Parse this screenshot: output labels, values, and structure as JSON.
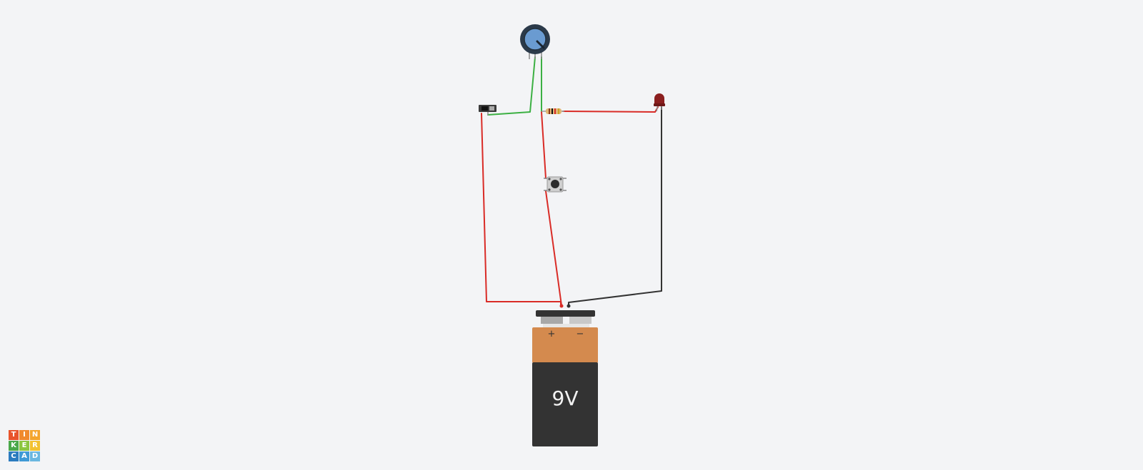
{
  "battery": {
    "voltage_label": "9V",
    "plus_label": "+",
    "minus_label": "−"
  },
  "logo": {
    "letters": [
      "T",
      "I",
      "N",
      "K",
      "E",
      "R",
      "C",
      "A",
      "D"
    ],
    "colors": [
      "#e8542c",
      "#f08a2d",
      "#f4a52d",
      "#4aa84a",
      "#8cc63f",
      "#f2c230",
      "#2b7bbf",
      "#3f9ad6",
      "#6ab7e0"
    ]
  },
  "colors": {
    "background": "#f3f4f6",
    "wire_red": "#d92b26",
    "wire_green": "#3cb043",
    "wire_black": "#333333",
    "battery_top": "#d48a4e",
    "battery_body": "#333333",
    "led": "#8b1f1f",
    "pot_knob": "#6a9bd1",
    "pot_ring": "#2b3a4a"
  }
}
